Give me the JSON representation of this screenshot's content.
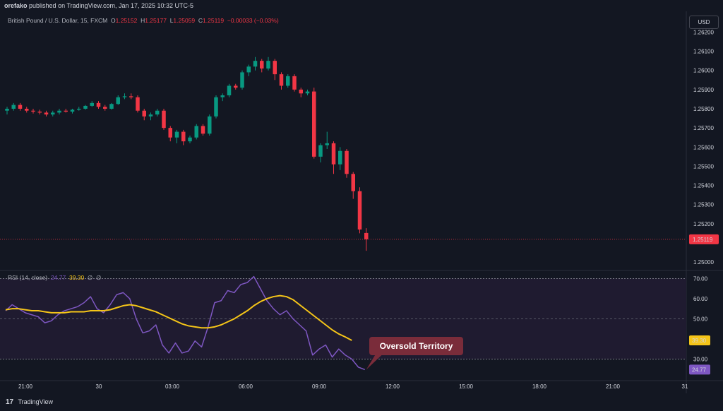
{
  "header": {
    "publisher": "orefako",
    "published_text": "published on TradingView.com, Jan 17, 2025 10:32 UTC-5"
  },
  "legend": {
    "symbol": "British Pound / U.S. Dollar, 15, FXCM",
    "open_label": "O",
    "open": "1.25152",
    "high_label": "H",
    "high": "1.25177",
    "low_label": "L",
    "low": "1.25059",
    "close_label": "C",
    "close": "1.25119",
    "change": "−0.00033 (−0.03%)"
  },
  "currency_button": "USD",
  "rsi_legend": {
    "name": "RSI (14, close)",
    "rsi": "24.77",
    "ma": "39.30",
    "extra1": "∅",
    "extra2": "∅"
  },
  "annotation": "Oversold Territory",
  "footer": {
    "logo": "17",
    "brand": "TradingView"
  },
  "colors": {
    "background": "#131722",
    "up": "#089981",
    "down": "#f23645",
    "rsi_line": "#7e57c2",
    "rsi_ma": "#f5c518",
    "rsi_band": "#1f1b30",
    "callout": "#7a2c3a"
  },
  "chart_data": [
    {
      "type": "candlestick",
      "name": "price",
      "current_price_label": "1.25119",
      "y_ticks": [
        "1.26200",
        "1.26100",
        "1.26000",
        "1.25900",
        "1.25800",
        "1.25700",
        "1.25600",
        "1.25500",
        "1.25400",
        "1.25300",
        "1.25200",
        "1.25000"
      ],
      "ylim": [
        1.2496,
        1.2622
      ],
      "x_ticks": [
        "21:00",
        "30",
        "03:00",
        "06:00",
        "09:00",
        "12:00",
        "15:00",
        "18:00",
        "21:00",
        "31"
      ],
      "candles": [
        [
          1.2579,
          1.2581,
          1.2577,
          1.258
        ],
        [
          1.258,
          1.2583,
          1.2579,
          1.2582
        ],
        [
          1.2582,
          1.2583,
          1.2579,
          1.258
        ],
        [
          1.258,
          1.2581,
          1.2578,
          1.2579
        ],
        [
          1.2579,
          1.258,
          1.25775,
          1.25785
        ],
        [
          1.25785,
          1.25795,
          1.2577,
          1.2578
        ],
        [
          1.2578,
          1.2579,
          1.2576,
          1.2577
        ],
        [
          1.2577,
          1.2579,
          1.2576,
          1.2578
        ],
        [
          1.2578,
          1.258,
          1.2577,
          1.2579
        ],
        [
          1.2579,
          1.258,
          1.2578,
          1.25785
        ],
        [
          1.25785,
          1.258,
          1.25775,
          1.25795
        ],
        [
          1.25795,
          1.2581,
          1.2579,
          1.258
        ],
        [
          1.258,
          1.2582,
          1.25795,
          1.25815
        ],
        [
          1.25815,
          1.2584,
          1.2581,
          1.2583
        ],
        [
          1.2583,
          1.2584,
          1.258,
          1.2581
        ],
        [
          1.2581,
          1.2582,
          1.2579,
          1.258
        ],
        [
          1.258,
          1.2583,
          1.25795,
          1.25825
        ],
        [
          1.25825,
          1.2587,
          1.2582,
          1.2586
        ],
        [
          1.2586,
          1.2588,
          1.2585,
          1.25865
        ],
        [
          1.25865,
          1.2588,
          1.2585,
          1.2586
        ],
        [
          1.2586,
          1.2587,
          1.2578,
          1.2579
        ],
        [
          1.2579,
          1.258,
          1.2574,
          1.2576
        ],
        [
          1.2576,
          1.2578,
          1.2574,
          1.2577
        ],
        [
          1.2577,
          1.258,
          1.2576,
          1.2579
        ],
        [
          1.2579,
          1.258,
          1.2569,
          1.257
        ],
        [
          1.257,
          1.2571,
          1.2563,
          1.2565
        ],
        [
          1.2565,
          1.2569,
          1.2562,
          1.2568
        ],
        [
          1.2568,
          1.2569,
          1.2561,
          1.2563
        ],
        [
          1.2563,
          1.2566,
          1.2562,
          1.2565
        ],
        [
          1.2565,
          1.2572,
          1.2564,
          1.2571
        ],
        [
          1.2571,
          1.2572,
          1.2566,
          1.2567
        ],
        [
          1.2567,
          1.2577,
          1.2566,
          1.2576
        ],
        [
          1.2576,
          1.2587,
          1.2575,
          1.2586
        ],
        [
          1.2586,
          1.2588,
          1.2584,
          1.2587
        ],
        [
          1.2587,
          1.2593,
          1.2586,
          1.2592
        ],
        [
          1.2592,
          1.2593,
          1.259,
          1.2591
        ],
        [
          1.2591,
          1.26,
          1.259,
          1.2599
        ],
        [
          1.2599,
          1.2603,
          1.2597,
          1.2602
        ],
        [
          1.2602,
          1.2607,
          1.26,
          1.2605
        ],
        [
          1.2605,
          1.2606,
          1.2599,
          1.2601
        ],
        [
          1.2601,
          1.2607,
          1.26,
          1.2605
        ],
        [
          1.2605,
          1.2606,
          1.2595,
          1.2598
        ],
        [
          1.2598,
          1.2599,
          1.259,
          1.2592
        ],
        [
          1.2592,
          1.2598,
          1.2591,
          1.2597
        ],
        [
          1.2597,
          1.2598,
          1.2589,
          1.259
        ],
        [
          1.259,
          1.2591,
          1.2586,
          1.2588
        ],
        [
          1.2588,
          1.259,
          1.2587,
          1.2589
        ],
        [
          1.2589,
          1.2591,
          1.2554,
          1.2555
        ],
        [
          1.2555,
          1.2562,
          1.2552,
          1.2561
        ],
        [
          1.2561,
          1.2568,
          1.2559,
          1.2562
        ],
        [
          1.2562,
          1.2563,
          1.2546,
          1.2551
        ],
        [
          1.2551,
          1.256,
          1.2548,
          1.2558
        ],
        [
          1.2558,
          1.2559,
          1.2544,
          1.2546
        ],
        [
          1.2546,
          1.2547,
          1.2533,
          1.2537
        ],
        [
          1.2537,
          1.2539,
          1.2515,
          1.2517
        ],
        [
          1.25152,
          1.25177,
          1.25059,
          1.25119
        ]
      ]
    },
    {
      "type": "line",
      "name": "RSI (14, close)",
      "y_ticks": [
        "70.00",
        "60.00",
        "50.00",
        "30.00"
      ],
      "ylim": [
        20,
        74
      ],
      "bands": [
        30,
        50,
        70
      ],
      "rsi_label": "24.77",
      "ma_label": "39.30",
      "series": [
        {
          "name": "RSI",
          "values": [
            54,
            57,
            55,
            53,
            52,
            51,
            48,
            49,
            52,
            54,
            55,
            56,
            58,
            61,
            55,
            53,
            57,
            62,
            63,
            60,
            50,
            43,
            44,
            47,
            37,
            33,
            38,
            33,
            34,
            39,
            36,
            46,
            58,
            59,
            64,
            63,
            67,
            68,
            71,
            65,
            59,
            55,
            52,
            54,
            50,
            47,
            44,
            32,
            35,
            37,
            31,
            35,
            32,
            30,
            26,
            24.77
          ]
        },
        {
          "name": "MA",
          "values": [
            54.5,
            55,
            55,
            54.5,
            54,
            54,
            53.5,
            53,
            53,
            53,
            53.5,
            53.5,
            53.5,
            54,
            54,
            54,
            54.5,
            55.5,
            56.5,
            57,
            56.5,
            55.5,
            54.5,
            53.5,
            52,
            50.5,
            49,
            47.5,
            46.5,
            46,
            45.5,
            45.5,
            46,
            47,
            48.5,
            50,
            52,
            54,
            56.5,
            58.5,
            60,
            61,
            61.5,
            61,
            59.5,
            57,
            54.5,
            52,
            49.5,
            47,
            44.5,
            42.5,
            41,
            39.3
          ]
        }
      ]
    }
  ]
}
